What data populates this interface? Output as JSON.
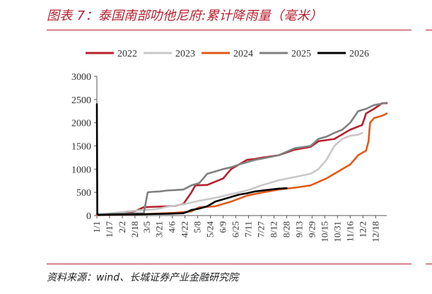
{
  "header": {
    "title": "图表 7：泰国南部叻他尼府:累计降雨量（毫米）"
  },
  "footer": {
    "source": "资料来源：wind、长城证券产业金融研究院"
  },
  "chart_data": {
    "type": "line",
    "title": "",
    "xlabel": "",
    "ylabel": "",
    "ylim": [
      0,
      3000
    ],
    "yticks": [
      0,
      500,
      1000,
      1500,
      2000,
      2500,
      3000
    ],
    "x_ticks": [
      "1/1",
      "1/17",
      "2/2",
      "2/18",
      "3/5",
      "3/21",
      "4/6",
      "4/22",
      "5/8",
      "5/24",
      "6/9",
      "6/25",
      "7/11",
      "7/27",
      "8/12",
      "8/28",
      "9/13",
      "9/29",
      "10/15",
      "10/31",
      "11/16",
      "12/2",
      "12/18"
    ],
    "x_domain": [
      1,
      366
    ],
    "x_unit": "day of year",
    "grid": false,
    "legend": "top",
    "series": [
      {
        "name": "2022",
        "color": "#b5202e",
        "x": [
          1,
          20,
          40,
          50,
          60,
          75,
          90,
          100,
          110,
          120,
          125,
          140,
          160,
          170,
          190,
          200,
          210,
          230,
          250,
          270,
          280,
          300,
          320,
          335,
          340,
          350,
          360,
          366
        ],
        "values": [
          20,
          40,
          60,
          100,
          180,
          190,
          200,
          210,
          250,
          500,
          650,
          660,
          800,
          1000,
          1200,
          1220,
          1250,
          1300,
          1420,
          1480,
          1600,
          1650,
          1850,
          1950,
          2200,
          2300,
          2420,
          2420
        ]
      },
      {
        "name": "2023",
        "color": "#c8c8c8",
        "x": [
          1,
          20,
          40,
          60,
          70,
          80,
          90,
          110,
          130,
          150,
          170,
          190,
          210,
          230,
          250,
          270,
          280,
          290,
          300,
          310,
          320,
          330,
          335
        ],
        "values": [
          10,
          50,
          90,
          120,
          130,
          150,
          190,
          240,
          320,
          380,
          460,
          540,
          660,
          760,
          830,
          900,
          1000,
          1200,
          1500,
          1650,
          1720,
          1740,
          1780
        ]
      },
      {
        "name": "2024",
        "color": "#e05a1a",
        "x": [
          1,
          60,
          100,
          120,
          130,
          150,
          170,
          190,
          210,
          230,
          250,
          270,
          290,
          300,
          310,
          320,
          330,
          340,
          343,
          345,
          350,
          360,
          364,
          366
        ],
        "values": [
          10,
          30,
          60,
          90,
          180,
          200,
          300,
          430,
          500,
          560,
          600,
          650,
          800,
          900,
          1000,
          1100,
          1300,
          1400,
          1600,
          2000,
          2100,
          2150,
          2180,
          2200
        ]
      },
      {
        "name": "2025",
        "color": "#808080",
        "x": [
          1,
          60,
          65,
          70,
          80,
          90,
          100,
          110,
          120,
          130,
          140,
          150,
          160,
          170,
          180,
          190,
          200,
          210,
          230,
          250,
          270,
          280,
          290,
          300,
          310,
          320,
          330,
          340,
          350,
          366
        ],
        "values": [
          30,
          50,
          500,
          510,
          520,
          540,
          550,
          560,
          650,
          700,
          900,
          950,
          1000,
          1040,
          1100,
          1150,
          1200,
          1230,
          1300,
          1450,
          1500,
          1650,
          1700,
          1780,
          1850,
          2000,
          2250,
          2300,
          2380,
          2430
        ]
      },
      {
        "name": "2026",
        "color": "#000000",
        "x": [
          1,
          1.5,
          3,
          20,
          60,
          90,
          110,
          115,
          120,
          130,
          140,
          145,
          150,
          160,
          170,
          180,
          190,
          200,
          210,
          220,
          230,
          240
        ],
        "values": [
          2400,
          40,
          10,
          20,
          30,
          40,
          50,
          80,
          120,
          150,
          200,
          250,
          300,
          350,
          400,
          450,
          480,
          520,
          540,
          560,
          580,
          590
        ]
      }
    ]
  }
}
